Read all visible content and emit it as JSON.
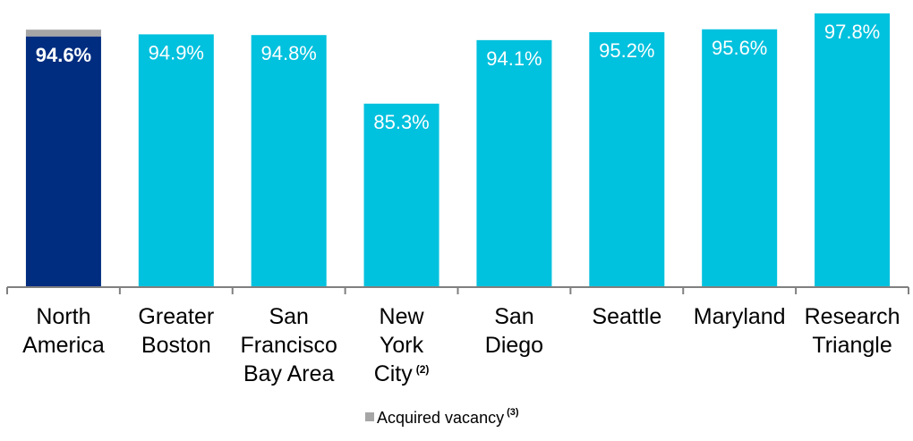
{
  "chart_data": {
    "type": "bar",
    "title": "",
    "xlabel": "",
    "ylabel": "",
    "categories": [
      {
        "lines": [
          "North",
          "America"
        ],
        "sup": ""
      },
      {
        "lines": [
          "Greater",
          "Boston"
        ],
        "sup": ""
      },
      {
        "lines": [
          "San",
          "Francisco",
          "Bay Area"
        ],
        "sup": ""
      },
      {
        "lines": [
          "New",
          "York",
          "City"
        ],
        "sup": "(2)"
      },
      {
        "lines": [
          "San",
          "Diego"
        ],
        "sup": ""
      },
      {
        "lines": [
          "Seattle"
        ],
        "sup": ""
      },
      {
        "lines": [
          "Maryland"
        ],
        "sup": ""
      },
      {
        "lines": [
          "Research",
          "Triangle"
        ],
        "sup": ""
      }
    ],
    "values": [
      94.6,
      94.9,
      94.8,
      85.3,
      94.1,
      95.2,
      95.6,
      97.8
    ],
    "value_labels": [
      "94.6%",
      "94.9%",
      "94.8%",
      "85.3%",
      "94.1%",
      "95.2%",
      "95.6%",
      "97.8%"
    ],
    "acquired_vacancy": [
      1.9,
      0,
      0,
      0,
      0,
      0,
      0,
      0
    ],
    "highlight_index": 0,
    "ylim": [
      60,
      100
    ],
    "grid": false,
    "colors": {
      "highlight": "#002D80",
      "bar": "#00C1DE",
      "acquired_vacancy": "#A6A6A6",
      "axis": "#808080",
      "label_on_bar": "#FFFFFF",
      "category_text": "#000000"
    },
    "legend": {
      "position": "bottom-center",
      "entries": [
        {
          "label": "Acquired vacancy",
          "sup": "(3)",
          "color": "#A6A6A6"
        }
      ]
    }
  }
}
